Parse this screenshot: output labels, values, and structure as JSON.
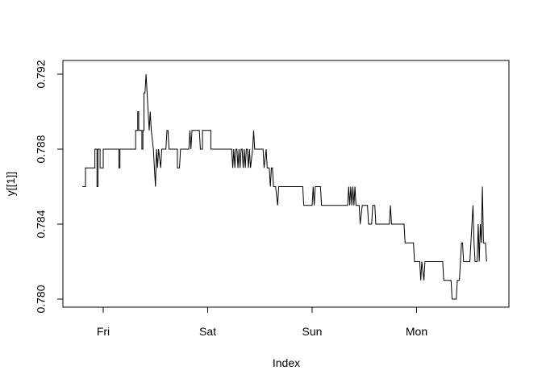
{
  "chart_data": {
    "type": "line",
    "title": "",
    "xlabel": "Index",
    "ylabel": "y[[1]]",
    "x_ticks": [
      "Fri",
      "Sat",
      "Sun",
      "Mon"
    ],
    "y_ticks": [
      "0.780",
      "0.784",
      "0.788",
      "0.792"
    ],
    "ylim": [
      0.7795,
      0.7925
    ],
    "xlim": [
      -0.2,
      3.9
    ],
    "grid": false,
    "legend": "none",
    "series": [
      {
        "color": "#000000",
        "points": [
          [
            -0.2,
            0.786
          ],
          [
            -0.17,
            0.786
          ],
          [
            -0.17,
            0.787
          ],
          [
            -0.08,
            0.787
          ],
          [
            -0.08,
            0.788
          ],
          [
            -0.06,
            0.788
          ],
          [
            -0.06,
            0.786
          ],
          [
            -0.05,
            0.786
          ],
          [
            -0.05,
            0.788
          ],
          [
            -0.03,
            0.788
          ],
          [
            -0.03,
            0.787
          ],
          [
            0.0,
            0.787
          ],
          [
            0.0,
            0.788
          ],
          [
            0.15,
            0.788
          ],
          [
            0.15,
            0.787
          ],
          [
            0.16,
            0.787
          ],
          [
            0.16,
            0.788
          ],
          [
            0.31,
            0.788
          ],
          [
            0.31,
            0.789
          ],
          [
            0.33,
            0.789
          ],
          [
            0.33,
            0.79
          ],
          [
            0.34,
            0.79
          ],
          [
            0.34,
            0.789
          ],
          [
            0.37,
            0.789
          ],
          [
            0.37,
            0.788
          ],
          [
            0.38,
            0.788
          ],
          [
            0.38,
            0.789
          ],
          [
            0.39,
            0.789
          ],
          [
            0.39,
            0.791
          ],
          [
            0.4,
            0.791
          ],
          [
            0.41,
            0.792
          ],
          [
            0.42,
            0.791
          ],
          [
            0.43,
            0.79
          ],
          [
            0.44,
            0.789
          ],
          [
            0.45,
            0.79
          ],
          [
            0.46,
            0.789
          ],
          [
            0.48,
            0.788
          ],
          [
            0.5,
            0.786
          ],
          [
            0.51,
            0.788
          ],
          [
            0.52,
            0.787
          ],
          [
            0.53,
            0.788
          ],
          [
            0.55,
            0.787
          ],
          [
            0.56,
            0.788
          ],
          [
            0.6,
            0.788
          ],
          [
            0.61,
            0.789
          ],
          [
            0.62,
            0.789
          ],
          [
            0.63,
            0.788
          ],
          [
            0.71,
            0.788
          ],
          [
            0.71,
            0.787
          ],
          [
            0.73,
            0.787
          ],
          [
            0.74,
            0.788
          ],
          [
            0.82,
            0.788
          ],
          [
            0.83,
            0.789
          ],
          [
            0.84,
            0.788
          ],
          [
            0.85,
            0.789
          ],
          [
            0.92,
            0.789
          ],
          [
            0.93,
            0.788
          ],
          [
            0.95,
            0.788
          ],
          [
            0.95,
            0.789
          ],
          [
            1.03,
            0.789
          ],
          [
            1.03,
            0.788
          ],
          [
            1.23,
            0.788
          ],
          [
            1.24,
            0.787
          ],
          [
            1.25,
            0.788
          ],
          [
            1.26,
            0.787
          ],
          [
            1.27,
            0.788
          ],
          [
            1.28,
            0.788
          ],
          [
            1.29,
            0.787
          ],
          [
            1.3,
            0.788
          ],
          [
            1.31,
            0.787
          ],
          [
            1.32,
            0.788
          ],
          [
            1.33,
            0.788
          ],
          [
            1.34,
            0.787
          ],
          [
            1.35,
            0.788
          ],
          [
            1.36,
            0.787
          ],
          [
            1.37,
            0.788
          ],
          [
            1.38,
            0.788
          ],
          [
            1.39,
            0.787
          ],
          [
            1.4,
            0.788
          ],
          [
            1.41,
            0.787
          ],
          [
            1.43,
            0.788
          ],
          [
            1.44,
            0.789
          ],
          [
            1.45,
            0.788
          ],
          [
            1.53,
            0.788
          ],
          [
            1.54,
            0.787
          ],
          [
            1.56,
            0.788
          ],
          [
            1.57,
            0.787
          ],
          [
            1.59,
            0.787
          ],
          [
            1.6,
            0.786
          ],
          [
            1.61,
            0.787
          ],
          [
            1.62,
            0.787
          ],
          [
            1.63,
            0.786
          ],
          [
            1.65,
            0.786
          ],
          [
            1.67,
            0.785
          ],
          [
            1.68,
            0.786
          ],
          [
            1.91,
            0.786
          ],
          [
            1.92,
            0.785
          ],
          [
            2.0,
            0.785
          ],
          [
            2.01,
            0.786
          ],
          [
            2.02,
            0.785
          ],
          [
            2.03,
            0.786
          ],
          [
            2.08,
            0.786
          ],
          [
            2.09,
            0.785
          ],
          [
            2.34,
            0.785
          ],
          [
            2.35,
            0.786
          ],
          [
            2.36,
            0.785
          ],
          [
            2.37,
            0.786
          ],
          [
            2.38,
            0.785
          ],
          [
            2.39,
            0.786
          ],
          [
            2.4,
            0.785
          ],
          [
            2.41,
            0.786
          ],
          [
            2.42,
            0.785
          ],
          [
            2.45,
            0.785
          ],
          [
            2.46,
            0.784
          ],
          [
            2.48,
            0.785
          ],
          [
            2.53,
            0.785
          ],
          [
            2.54,
            0.784
          ],
          [
            2.57,
            0.784
          ],
          [
            2.58,
            0.785
          ],
          [
            2.6,
            0.785
          ],
          [
            2.61,
            0.784
          ],
          [
            2.74,
            0.784
          ],
          [
            2.75,
            0.785
          ],
          [
            2.76,
            0.784
          ],
          [
            2.88,
            0.784
          ],
          [
            2.89,
            0.783
          ],
          [
            2.97,
            0.783
          ],
          [
            2.98,
            0.782
          ],
          [
            3.03,
            0.782
          ],
          [
            3.04,
            0.781
          ],
          [
            3.05,
            0.782
          ],
          [
            3.07,
            0.781
          ],
          [
            3.08,
            0.782
          ],
          [
            3.25,
            0.782
          ],
          [
            3.26,
            0.781
          ],
          [
            3.33,
            0.781
          ],
          [
            3.34,
            0.78
          ],
          [
            3.38,
            0.78
          ],
          [
            3.39,
            0.781
          ],
          [
            3.41,
            0.781
          ],
          [
            3.42,
            0.782
          ],
          [
            3.43,
            0.783
          ],
          [
            3.44,
            0.783
          ],
          [
            3.45,
            0.782
          ],
          [
            3.51,
            0.782
          ],
          [
            3.52,
            0.783
          ],
          [
            3.53,
            0.784
          ],
          [
            3.54,
            0.785
          ],
          [
            3.55,
            0.783
          ],
          [
            3.56,
            0.782
          ],
          [
            3.58,
            0.782
          ],
          [
            3.59,
            0.784
          ],
          [
            3.6,
            0.782
          ],
          [
            3.61,
            0.784
          ],
          [
            3.62,
            0.783
          ],
          [
            3.63,
            0.786
          ],
          [
            3.64,
            0.783
          ],
          [
            3.66,
            0.783
          ],
          [
            3.67,
            0.782
          ]
        ]
      }
    ]
  }
}
